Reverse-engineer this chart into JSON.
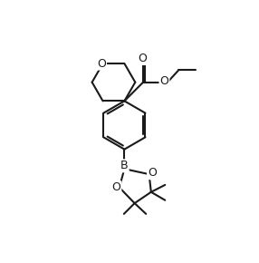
{
  "bg_color": "#ffffff",
  "line_color": "#1a1a1a",
  "line_width": 1.5,
  "fig_width": 2.86,
  "fig_height": 2.9,
  "dpi": 100,
  "xlim": [
    0,
    10
  ],
  "ylim": [
    0,
    10
  ]
}
